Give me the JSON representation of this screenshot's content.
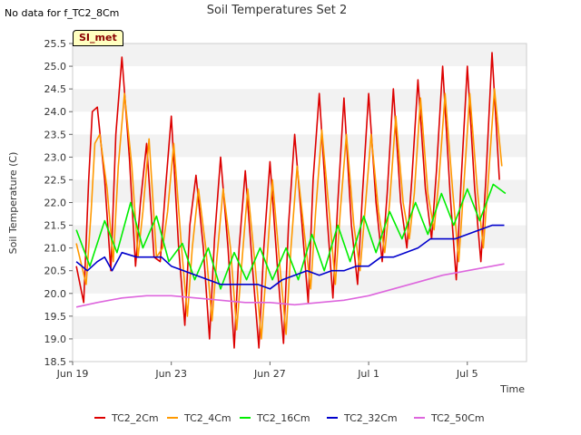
{
  "corner_note": "No data for f_TC2_8Cm",
  "badge_label": "SI_met",
  "chart_data": {
    "type": "line",
    "title": "Soil Temperatures Set 2",
    "xlabel": "Time",
    "ylabel": "Soil Temperature (C)",
    "ylim": [
      18.5,
      25.5
    ],
    "xlim": [
      0,
      18.4
    ],
    "x_unit": "days since Jun 19",
    "yticks": [
      18.5,
      19.0,
      19.5,
      20.0,
      20.5,
      21.0,
      21.5,
      22.0,
      22.5,
      23.0,
      23.5,
      24.0,
      24.5,
      25.0,
      25.5
    ],
    "xticks": [
      {
        "day": 0,
        "label": "Jun 19"
      },
      {
        "day": 4,
        "label": "Jun 23"
      },
      {
        "day": 8,
        "label": "Jun 27"
      },
      {
        "day": 12,
        "label": "Jul 1"
      },
      {
        "day": 16,
        "label": "Jul 5"
      }
    ],
    "grid": "horizontal bands",
    "legend_position": "bottom",
    "series": [
      {
        "name": "TC2_2Cm",
        "color": "#dd0000",
        "x": [
          0.15,
          0.45,
          0.65,
          0.8,
          1.0,
          1.3,
          1.55,
          1.75,
          2.0,
          2.3,
          2.55,
          2.75,
          3.0,
          3.3,
          3.55,
          3.75,
          4.0,
          4.3,
          4.55,
          4.75,
          5.0,
          5.3,
          5.55,
          5.75,
          6.0,
          6.3,
          6.55,
          6.75,
          7.0,
          7.3,
          7.55,
          7.75,
          8.0,
          8.3,
          8.55,
          8.75,
          9.0,
          9.3,
          9.55,
          9.75,
          10.0,
          10.3,
          10.55,
          10.75,
          11.0,
          11.3,
          11.55,
          11.75,
          12.0,
          12.3,
          12.55,
          12.75,
          13.0,
          13.3,
          13.55,
          13.75,
          14.0,
          14.3,
          14.55,
          14.75,
          15.0,
          15.3,
          15.55,
          15.75,
          16.0,
          16.3,
          16.55,
          16.75,
          17.0,
          17.3
        ],
        "y": [
          20.6,
          19.8,
          22.5,
          24.0,
          24.1,
          22.5,
          20.5,
          23.5,
          25.2,
          23.0,
          20.6,
          22.0,
          23.3,
          20.8,
          20.7,
          22.2,
          23.9,
          21.0,
          19.3,
          21.5,
          22.6,
          21.0,
          19.0,
          21.2,
          23.0,
          21.0,
          18.8,
          21.0,
          22.7,
          20.5,
          18.8,
          21.0,
          22.9,
          20.6,
          18.9,
          21.5,
          23.5,
          21.5,
          19.8,
          22.5,
          24.4,
          21.8,
          19.9,
          22.0,
          24.3,
          21.5,
          20.2,
          22.2,
          24.4,
          22.0,
          20.7,
          22.2,
          24.5,
          22.0,
          21.0,
          22.5,
          24.7,
          22.3,
          21.2,
          22.7,
          25.0,
          22.2,
          20.3,
          22.5,
          25.0,
          22.3,
          20.7,
          22.5,
          25.3,
          22.5
        ]
      },
      {
        "name": "TC2_4Cm",
        "color": "#ff9900",
        "x": [
          0.15,
          0.55,
          0.75,
          0.9,
          1.1,
          1.4,
          1.65,
          1.85,
          2.1,
          2.4,
          2.65,
          2.85,
          3.1,
          3.4,
          3.65,
          3.85,
          4.1,
          4.4,
          4.65,
          4.85,
          5.1,
          5.4,
          5.65,
          5.85,
          6.1,
          6.4,
          6.65,
          6.85,
          7.1,
          7.4,
          7.65,
          7.85,
          8.1,
          8.4,
          8.65,
          8.85,
          9.1,
          9.4,
          9.65,
          9.85,
          10.1,
          10.4,
          10.65,
          10.85,
          11.1,
          11.4,
          11.65,
          11.85,
          12.1,
          12.4,
          12.65,
          12.85,
          13.1,
          13.4,
          13.65,
          13.85,
          14.1,
          14.4,
          14.65,
          14.85,
          15.1,
          15.4,
          15.65,
          15.85,
          16.1,
          16.4,
          16.65,
          16.85,
          17.1,
          17.4
        ],
        "y": [
          21.1,
          20.2,
          21.8,
          23.3,
          23.5,
          22.3,
          20.7,
          22.8,
          24.4,
          22.8,
          20.8,
          21.8,
          23.4,
          20.8,
          21.0,
          21.8,
          23.3,
          21.1,
          19.5,
          21.0,
          22.3,
          21.0,
          19.4,
          20.8,
          22.3,
          21.0,
          19.2,
          20.6,
          22.3,
          20.6,
          19.0,
          20.5,
          22.5,
          20.6,
          19.1,
          21.0,
          22.8,
          21.3,
          20.1,
          21.8,
          23.6,
          21.8,
          20.2,
          21.8,
          23.5,
          21.5,
          20.5,
          21.8,
          23.5,
          21.8,
          20.9,
          22.0,
          23.9,
          22.0,
          21.2,
          22.2,
          24.3,
          22.2,
          21.4,
          22.5,
          24.4,
          22.3,
          20.7,
          22.3,
          24.4,
          22.3,
          21.0,
          22.5,
          24.5,
          22.8
        ]
      },
      {
        "name": "TC2_16Cm",
        "color": "#00ee00",
        "x": [
          0.15,
          0.7,
          1.3,
          1.8,
          2.35,
          2.85,
          3.4,
          3.9,
          4.45,
          4.95,
          5.5,
          6.0,
          6.55,
          7.05,
          7.6,
          8.1,
          8.65,
          9.15,
          9.7,
          10.2,
          10.75,
          11.25,
          11.8,
          12.3,
          12.85,
          13.35,
          13.9,
          14.4,
          14.95,
          15.45,
          16.0,
          16.5,
          17.05,
          17.55
        ],
        "y": [
          21.4,
          20.6,
          21.6,
          20.9,
          22.0,
          21.0,
          21.7,
          20.7,
          21.1,
          20.3,
          21.0,
          20.1,
          20.9,
          20.3,
          21.0,
          20.3,
          21.0,
          20.3,
          21.3,
          20.5,
          21.5,
          20.7,
          21.7,
          20.9,
          21.8,
          21.2,
          22.0,
          21.3,
          22.2,
          21.5,
          22.3,
          21.6,
          22.4,
          22.2
        ]
      },
      {
        "name": "TC2_32Cm",
        "color": "#0000cc",
        "x": [
          0.15,
          0.6,
          1.0,
          1.3,
          1.6,
          2.0,
          2.6,
          3.0,
          3.6,
          4.0,
          4.5,
          5.0,
          5.5,
          6.0,
          6.5,
          7.0,
          7.5,
          8.0,
          8.5,
          9.0,
          9.5,
          10.0,
          10.5,
          11.0,
          11.5,
          12.0,
          12.5,
          13.0,
          13.5,
          14.0,
          14.5,
          15.0,
          15.5,
          16.0,
          16.5,
          17.0,
          17.5
        ],
        "y": [
          20.7,
          20.5,
          20.7,
          20.8,
          20.5,
          20.9,
          20.8,
          20.8,
          20.8,
          20.6,
          20.5,
          20.4,
          20.3,
          20.2,
          20.2,
          20.2,
          20.2,
          20.1,
          20.3,
          20.4,
          20.5,
          20.4,
          20.5,
          20.5,
          20.6,
          20.6,
          20.8,
          20.8,
          20.9,
          21.0,
          21.2,
          21.2,
          21.2,
          21.3,
          21.4,
          21.5,
          21.5
        ]
      },
      {
        "name": "TC2_50Cm",
        "color": "#dd66dd",
        "x": [
          0.15,
          1.0,
          2.0,
          3.0,
          4.0,
          5.0,
          6.0,
          7.0,
          8.0,
          9.0,
          10.0,
          11.0,
          12.0,
          13.0,
          14.0,
          15.0,
          16.0,
          17.0,
          17.5
        ],
        "y": [
          19.7,
          19.8,
          19.9,
          19.95,
          19.95,
          19.9,
          19.85,
          19.8,
          19.8,
          19.75,
          19.8,
          19.85,
          19.95,
          20.1,
          20.25,
          20.4,
          20.5,
          20.6,
          20.65
        ]
      }
    ]
  }
}
